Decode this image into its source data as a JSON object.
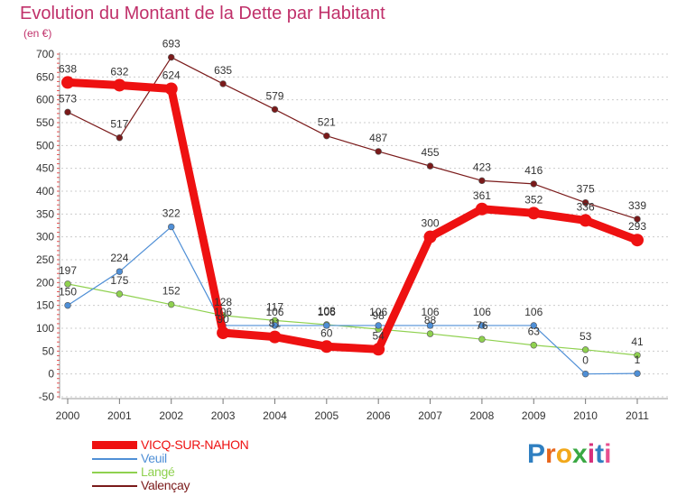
{
  "title": "Evolution du Montant de la Dette par Habitant",
  "subtitle": "(en €)",
  "logo": {
    "text": "Proxiti",
    "colors": [
      "#2f7fc1",
      "#e8661b",
      "#f2a81b",
      "#3aa843",
      "#d62f7a",
      "#2f7fc1",
      "#e84f8f"
    ]
  },
  "chart_data": {
    "type": "line",
    "categories": [
      "2000",
      "2001",
      "2002",
      "2003",
      "2004",
      "2005",
      "2006",
      "2007",
      "2008",
      "2009",
      "2010",
      "2011"
    ],
    "y_ticks": [
      "-50",
      "0",
      "50",
      "100",
      "150",
      "200",
      "250",
      "300",
      "350",
      "400",
      "450",
      "500",
      "550",
      "600",
      "650",
      "700"
    ],
    "ylim": [
      -50,
      700
    ],
    "grid": "horizontal dotted",
    "legend_position": "bottom-left",
    "series": [
      {
        "name": "VICQ-SUR-NAHON",
        "color": "#ee1111",
        "values": [
          638,
          632,
          624,
          90,
          81,
          60,
          54,
          300,
          361,
          352,
          336,
          293
        ]
      },
      {
        "name": "Veuil",
        "color": "#4f8fd6",
        "values": [
          150,
          224,
          322,
          106,
          106,
          106,
          106,
          106,
          106,
          106,
          0,
          1
        ]
      },
      {
        "name": "Langé",
        "color": "#8fd14f",
        "values": [
          197,
          175,
          152,
          128,
          117,
          108,
          98,
          88,
          76,
          63,
          53,
          41
        ]
      },
      {
        "name": "Valençay",
        "color": "#7a1a1a",
        "values": [
          573,
          517,
          693,
          635,
          579,
          521,
          487,
          455,
          423,
          416,
          375,
          339
        ]
      }
    ]
  }
}
